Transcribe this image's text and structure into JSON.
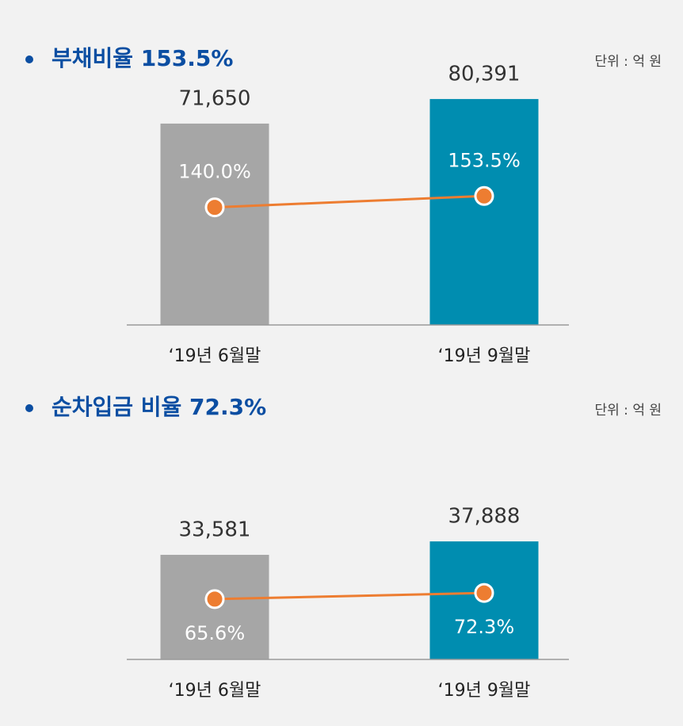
{
  "chart_data": [
    {
      "type": "bar-line",
      "title": "부채비율 153.5%",
      "unit": "단위 : 억 원",
      "categories": [
        "‘19년 6월말",
        "‘19년 9월말"
      ],
      "bar_values": [
        71650,
        80391
      ],
      "bar_value_labels": [
        "71,650",
        "80,391"
      ],
      "bar_colors": [
        "#a6a6a6",
        "#008db0"
      ],
      "line_values": [
        140.0,
        153.5
      ],
      "line_value_labels": [
        "140.0%",
        "153.5%"
      ],
      "line_color": "#ed7d31"
    },
    {
      "type": "bar-line",
      "title": "순차입금 비율 72.3%",
      "unit": "단위 : 억 원",
      "categories": [
        "‘19년 6월말",
        "‘19년 9월말"
      ],
      "bar_values": [
        33581,
        37888
      ],
      "bar_value_labels": [
        "33,581",
        "37,888"
      ],
      "bar_colors": [
        "#a6a6a6",
        "#008db0"
      ],
      "line_values": [
        65.6,
        72.3
      ],
      "line_value_labels": [
        "65.6%",
        "72.3%"
      ],
      "line_color": "#ed7d31"
    }
  ]
}
